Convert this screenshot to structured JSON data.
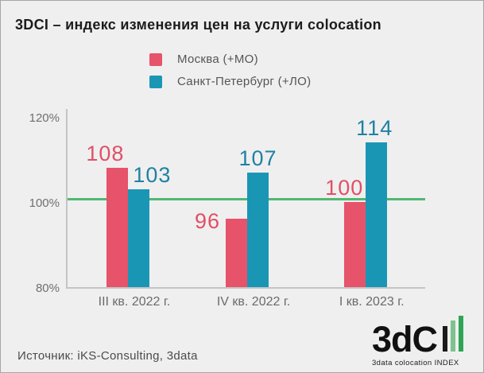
{
  "title": "3DCI – индекс изменения цен на услуги colocation",
  "legend": [
    {
      "label": "Москва (+МО)",
      "color": "#e6536a"
    },
    {
      "label": "Санкт-Петербург (+ЛО)",
      "color": "#1a96b5"
    }
  ],
  "chart_data": {
    "type": "bar",
    "title": "3DCI – индекс изменения цен на услуги colocation",
    "categories": [
      "III кв. 2022 г.",
      "IV кв. 2022 г.",
      "I кв. 2023 г."
    ],
    "series": [
      {
        "name": "Москва (+МО)",
        "color": "#e6536a",
        "label_color": "#e14f66",
        "values": [
          108,
          96,
          100
        ],
        "label_layout": [
          {
            "dx": -15
          },
          {
            "pos": "left"
          },
          {
            "dx": -13
          }
        ]
      },
      {
        "name": "Санкт-Петербург (+ЛО)",
        "color": "#1a96b5",
        "label_color": "#1f81a4",
        "values": [
          103,
          107,
          114
        ],
        "label_layout": [
          {
            "dx": 17
          },
          {
            "dx": 0
          },
          {
            "dx": -2
          }
        ]
      }
    ],
    "ylim": [
      80,
      120
    ],
    "yticks": [
      {
        "value": 120,
        "label": "120%"
      },
      {
        "value": 100,
        "label": "100%"
      },
      {
        "value": 80,
        "label": "80%"
      }
    ],
    "reference_line": {
      "value": 101,
      "color": "#51b873"
    },
    "grid": false,
    "legend_position": "top-center"
  },
  "source_text": "Источник: iKS-Consulting, 3data",
  "logo": {
    "brand": "3dCI",
    "wordmark": "3dC",
    "tagline": "3data colocation INDEX",
    "bar_colors": [
      "#1a1a1a",
      "#7ec28f",
      "#2fa455"
    ]
  },
  "colors": {
    "background": "#efefef",
    "axis": "#c4c4c4",
    "tick_label": "#6f6f6f",
    "category_label": "#6a6a6a",
    "title": "#1c1c1c",
    "source": "#4b4b4b",
    "reference_line": "#51b873",
    "moscow_red": "#e6536a",
    "spb_teal": "#1a96b5"
  }
}
